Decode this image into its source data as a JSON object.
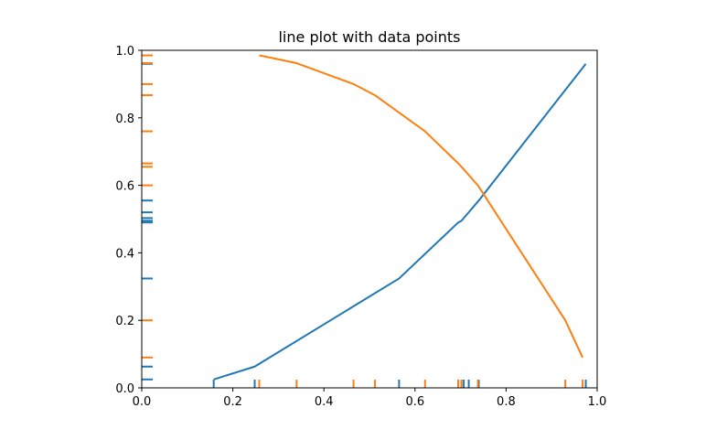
{
  "chart_data": {
    "type": "line",
    "title": "line plot with data points",
    "xlabel": "",
    "ylabel": "",
    "xlim": [
      0.0,
      1.0
    ],
    "ylim": [
      0.0,
      1.0
    ],
    "grid": false,
    "xticks": [
      "0.0",
      "0.2",
      "0.4",
      "0.6",
      "0.8",
      "1.0"
    ],
    "yticks": [
      "0.0",
      "0.2",
      "0.4",
      "0.6",
      "0.8",
      "1.0"
    ],
    "colors": {
      "series1": "#1f77b4",
      "series2": "#ff7f0e",
      "axes": "#000000"
    },
    "series": [
      {
        "x": [
          0.158,
          0.248,
          0.565,
          0.695,
          0.702,
          0.707,
          0.718,
          0.74,
          0.975
        ],
        "y": [
          0.025,
          0.063,
          0.324,
          0.49,
          0.495,
          0.503,
          0.52,
          0.555,
          0.96
        ],
        "rug": true
      },
      {
        "x": [
          0.258,
          0.34,
          0.465,
          0.512,
          0.622,
          0.695,
          0.702,
          0.738,
          0.93,
          0.968
        ],
        "y": [
          0.985,
          0.962,
          0.9,
          0.867,
          0.76,
          0.665,
          0.655,
          0.6,
          0.2,
          0.09
        ],
        "rug": true
      }
    ]
  }
}
